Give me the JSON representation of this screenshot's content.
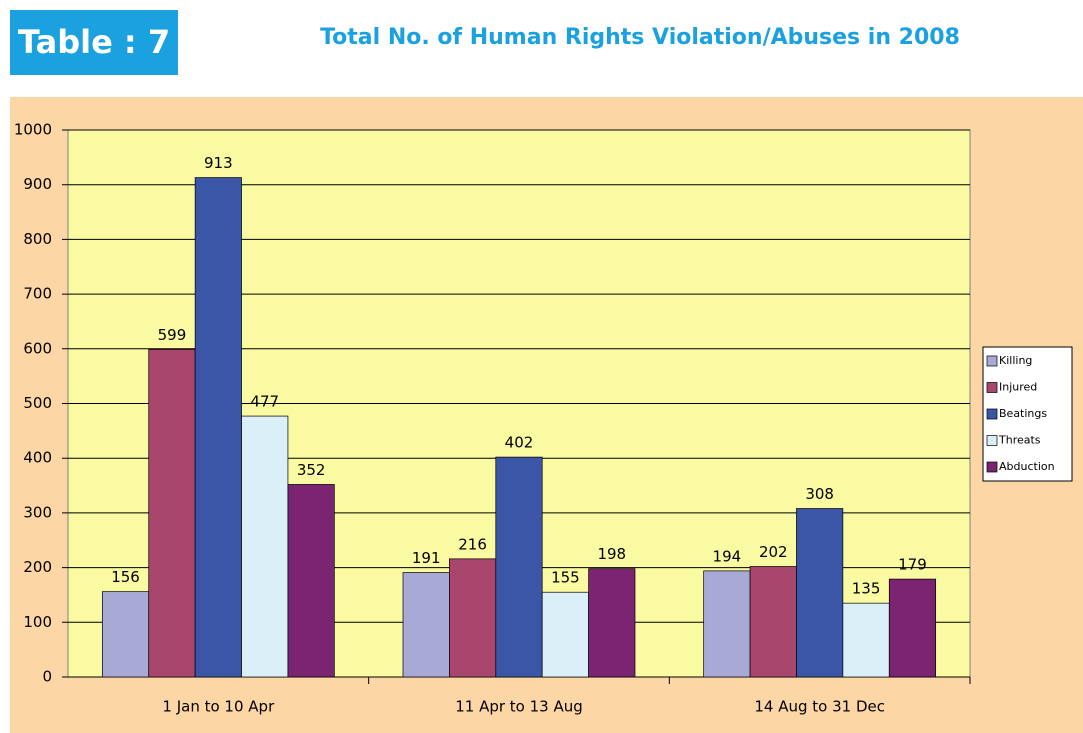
{
  "header": {
    "label": "Table : 7"
  },
  "chart_data": {
    "type": "bar",
    "title": "Total No. of Human Rights Violation/Abuses in 2008",
    "categories": [
      "1 Jan to 10 Apr",
      "11 Apr to 13 Aug",
      "14 Aug to 31 Dec"
    ],
    "series": [
      {
        "name": "Killing",
        "color": "#a9a9d6",
        "values": [
          156,
          191,
          194
        ]
      },
      {
        "name": "Injured",
        "color": "#a8466e",
        "values": [
          599,
          216,
          202
        ]
      },
      {
        "name": "Beatings",
        "color": "#3b56a6",
        "values": [
          913,
          402,
          308
        ]
      },
      {
        "name": "Threats",
        "color": "#daeff8",
        "values": [
          477,
          155,
          135
        ]
      },
      {
        "name": "Abduction",
        "color": "#7b2572",
        "values": [
          352,
          198,
          179
        ]
      }
    ],
    "ylim": [
      0,
      1000
    ],
    "yticks": [
      0,
      100,
      200,
      300,
      400,
      500,
      600,
      700,
      800,
      900,
      1000
    ],
    "grid": true,
    "legend": "right"
  }
}
